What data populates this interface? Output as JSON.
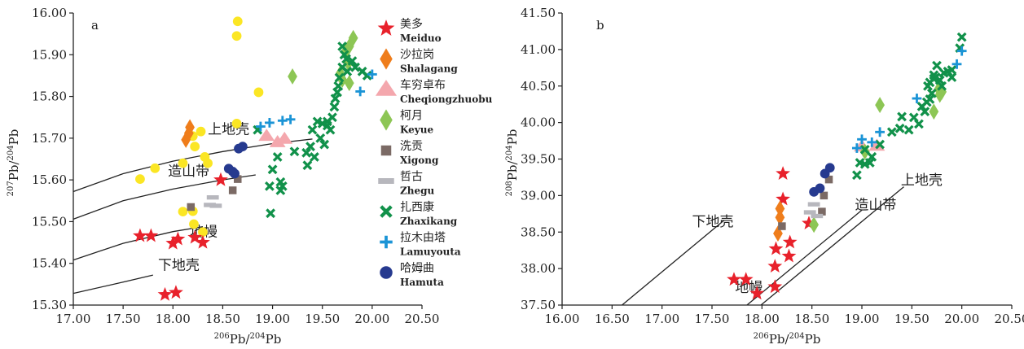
{
  "legend": {
    "items": [
      {
        "key": "meiduo",
        "cn": "美多",
        "en": "Meiduo",
        "symbol": "star",
        "color": "#e8212b"
      },
      {
        "key": "shalagang",
        "cn": "沙拉岗",
        "en": "Shalagang",
        "symbol": "diamond",
        "color": "#ef7d1b"
      },
      {
        "key": "cheqiong",
        "cn": "车穷卓布",
        "en": "Cheqiongzhuobu",
        "symbol": "triangle",
        "color": "#f4a7ad"
      },
      {
        "key": "keyue",
        "cn": "柯月",
        "en": "Keyue",
        "symbol": "diamond",
        "color": "#8dc655"
      },
      {
        "key": "xigong",
        "cn": "洗贡",
        "en": "Xigong",
        "symbol": "square",
        "color": "#7b6a65"
      },
      {
        "key": "zhegu",
        "cn": "哲古",
        "en": "Zhegu",
        "symbol": "dash",
        "color": "#b7b7bd"
      },
      {
        "key": "zhaxikang",
        "cn": "扎西康",
        "en": "Zhaxikang",
        "symbol": "x",
        "color": "#11914a"
      },
      {
        "key": "lamuyouta",
        "cn": "拉木由塔",
        "en": "Lamuyouta",
        "symbol": "plus",
        "color": "#1b94d6"
      },
      {
        "key": "hamuta",
        "cn": "哈姆曲",
        "en": "Hamuta",
        "symbol": "circle",
        "color": "#263a8f"
      },
      {
        "key": "unlabeled",
        "symbol": "circle",
        "color": "#fbe624"
      }
    ]
  },
  "chart_data": [
    {
      "id": "a",
      "panel_label": "a",
      "type": "scatter",
      "xlabel": "206Pb/204Pb",
      "ylabel": "207Pb/204Pb",
      "xlim": [
        17.0,
        20.5
      ],
      "ylim": [
        15.3,
        16.0
      ],
      "xticks": [
        "17.00",
        "17.50",
        "18.00",
        "18.50",
        "19.00",
        "19.50",
        "20.00",
        "20.50"
      ],
      "yticks": [
        "15.30",
        "15.40",
        "15.50",
        "15.60",
        "15.70",
        "15.80",
        "15.90",
        "16.00"
      ],
      "curves": [
        {
          "name": "上地壳",
          "points": [
            [
              17.0,
              15.572
            ],
            [
              17.5,
              15.615
            ],
            [
              18.0,
              15.645
            ],
            [
              18.5,
              15.668
            ],
            [
              19.0,
              15.687
            ],
            [
              19.4,
              15.698
            ]
          ]
        },
        {
          "name": "造山带",
          "points": [
            [
              17.0,
              15.506
            ],
            [
              17.5,
              15.55
            ],
            [
              18.0,
              15.578
            ],
            [
              18.5,
              15.6
            ],
            [
              18.83,
              15.612
            ]
          ]
        },
        {
          "name": "地幔",
          "points": [
            [
              17.0,
              15.408
            ],
            [
              17.5,
              15.448
            ],
            [
              18.0,
              15.476
            ],
            [
              18.3,
              15.488
            ]
          ]
        },
        {
          "name": "下地壳",
          "points": [
            [
              17.0,
              15.328
            ],
            [
              17.5,
              15.355
            ],
            [
              17.8,
              15.372
            ]
          ]
        }
      ],
      "region_labels": [
        {
          "text": "上地壳",
          "x": 18.35,
          "y": 15.71
        },
        {
          "text": "造山带",
          "x": 17.95,
          "y": 15.61
        },
        {
          "text": "地幔",
          "x": 18.17,
          "y": 15.465
        },
        {
          "text": "下地壳",
          "x": 17.85,
          "y": 15.385
        }
      ],
      "series": [
        {
          "key": "unlabeled",
          "points": [
            [
              18.65,
              15.98
            ],
            [
              18.64,
              15.945
            ],
            [
              18.86,
              15.81
            ],
            [
              18.64,
              15.735
            ],
            [
              18.28,
              15.716
            ],
            [
              18.2,
              15.705
            ],
            [
              18.22,
              15.68
            ],
            [
              18.32,
              15.655
            ],
            [
              18.35,
              15.64
            ],
            [
              18.1,
              15.64
            ],
            [
              17.82,
              15.628
            ],
            [
              17.67,
              15.602
            ],
            [
              18.1,
              15.524
            ],
            [
              18.2,
              15.525
            ],
            [
              18.21,
              15.494
            ],
            [
              18.3,
              15.475
            ]
          ]
        },
        {
          "key": "meiduo",
          "points": [
            [
              17.67,
              15.466
            ],
            [
              17.78,
              15.466
            ],
            [
              18.0,
              15.448
            ],
            [
              18.05,
              15.458
            ],
            [
              18.3,
              15.45
            ],
            [
              18.22,
              15.462
            ],
            [
              18.48,
              15.6
            ],
            [
              17.92,
              15.325
            ],
            [
              18.03,
              15.33
            ]
          ]
        },
        {
          "key": "shalagang",
          "points": [
            [
              18.17,
              15.726
            ],
            [
              18.16,
              15.712
            ],
            [
              18.13,
              15.696
            ]
          ]
        },
        {
          "key": "cheqiong",
          "points": [
            [
              18.94,
              15.705
            ],
            [
              19.05,
              15.69
            ],
            [
              19.12,
              15.698
            ]
          ]
        },
        {
          "key": "keyue",
          "points": [
            [
              19.2,
              15.848
            ],
            [
              19.81,
              15.94
            ],
            [
              19.77,
              15.92
            ],
            [
              19.74,
              15.91
            ],
            [
              19.76,
              15.88
            ],
            [
              19.7,
              15.84
            ],
            [
              19.77,
              15.832
            ],
            [
              19.68,
              15.855
            ]
          ]
        },
        {
          "key": "xigong",
          "points": [
            [
              18.18,
              15.535
            ],
            [
              18.6,
              15.575
            ],
            [
              18.65,
              15.602
            ]
          ]
        },
        {
          "key": "zhegu",
          "points": [
            [
              18.4,
              15.558
            ],
            [
              18.37,
              15.54
            ],
            [
              18.43,
              15.538
            ]
          ]
        },
        {
          "key": "zhaxikang",
          "points": [
            [
              19.7,
              15.92
            ],
            [
              19.72,
              15.9
            ],
            [
              19.74,
              15.89
            ],
            [
              19.7,
              15.87
            ],
            [
              19.75,
              15.86
            ],
            [
              19.67,
              15.845
            ],
            [
              19.66,
              15.825
            ],
            [
              19.65,
              15.81
            ],
            [
              19.63,
              15.795
            ],
            [
              19.62,
              15.775
            ],
            [
              19.8,
              15.885
            ],
            [
              19.83,
              15.87
            ],
            [
              19.9,
              15.86
            ],
            [
              19.95,
              15.85
            ],
            [
              19.6,
              15.75
            ],
            [
              19.55,
              15.74
            ],
            [
              19.5,
              15.735
            ],
            [
              19.45,
              15.74
            ],
            [
              19.55,
              15.73
            ],
            [
              19.58,
              15.72
            ],
            [
              19.4,
              15.72
            ],
            [
              19.48,
              15.7
            ],
            [
              19.38,
              15.68
            ],
            [
              19.52,
              15.685
            ],
            [
              19.34,
              15.665
            ],
            [
              19.42,
              15.655
            ],
            [
              19.35,
              15.635
            ],
            [
              19.22,
              15.668
            ],
            [
              19.05,
              15.655
            ],
            [
              18.85,
              15.72
            ],
            [
              19.0,
              15.625
            ],
            [
              19.08,
              15.595
            ],
            [
              19.1,
              15.585
            ],
            [
              18.97,
              15.585
            ],
            [
              18.98,
              15.52
            ],
            [
              19.08,
              15.575
            ]
          ]
        },
        {
          "key": "lamuyouta",
          "points": [
            [
              18.88,
              15.728
            ],
            [
              18.97,
              15.737
            ],
            [
              19.1,
              15.742
            ],
            [
              19.18,
              15.745
            ],
            [
              19.88,
              15.812
            ],
            [
              20.0,
              15.853
            ]
          ]
        },
        {
          "key": "hamuta",
          "points": [
            [
              18.56,
              15.627
            ],
            [
              18.6,
              15.62
            ],
            [
              18.62,
              15.615
            ],
            [
              18.66,
              15.675
            ],
            [
              18.7,
              15.68
            ]
          ]
        }
      ]
    },
    {
      "id": "b",
      "panel_label": "b",
      "type": "scatter",
      "xlabel": "206Pb/204Pb",
      "ylabel": "208Pb/204Pb",
      "xlim": [
        16.0,
        20.5
      ],
      "ylim": [
        37.5,
        41.5
      ],
      "xticks": [
        "16.00",
        "16.50",
        "17.00",
        "17.50",
        "18.00",
        "18.50",
        "19.00",
        "19.50",
        "20.00",
        "20.50"
      ],
      "yticks": [
        "37.50",
        "38.00",
        "38.50",
        "39.00",
        "39.50",
        "40.00",
        "40.50",
        "41.00",
        "41.50"
      ],
      "curves": [
        {
          "name": "下地壳",
          "points": [
            [
              16.6,
              37.5
            ],
            [
              17.62,
              38.66
            ]
          ]
        },
        {
          "name": "造山带",
          "points": [
            [
              17.85,
              37.5
            ],
            [
              19.0,
              38.8
            ]
          ]
        },
        {
          "name": "上地壳",
          "points": [
            [
              17.99,
              37.5
            ],
            [
              19.42,
              39.12
            ]
          ]
        }
      ],
      "region_labels": [
        {
          "text": "下地壳",
          "x": 17.3,
          "y": 38.58
        },
        {
          "text": "造山带",
          "x": 18.93,
          "y": 38.81
        },
        {
          "text": "上地壳",
          "x": 19.39,
          "y": 39.15
        },
        {
          "text": "地幔",
          "x": 17.73,
          "y": 37.68
        }
      ],
      "series": [
        {
          "key": "meiduo",
          "points": [
            [
              17.72,
              37.85
            ],
            [
              17.84,
              37.85
            ],
            [
              17.95,
              37.66
            ],
            [
              18.13,
              37.75
            ],
            [
              18.13,
              38.03
            ],
            [
              18.14,
              38.27
            ],
            [
              18.28,
              38.36
            ],
            [
              18.27,
              38.17
            ],
            [
              18.47,
              38.62
            ],
            [
              18.21,
              38.95
            ],
            [
              18.21,
              39.3
            ]
          ]
        },
        {
          "key": "shalagang",
          "points": [
            [
              18.18,
              38.82
            ],
            [
              18.18,
              38.7
            ],
            [
              18.16,
              38.48
            ]
          ]
        },
        {
          "key": "cheqiong",
          "points": [
            [
              19.0,
              39.67
            ],
            [
              19.15,
              39.68
            ]
          ]
        },
        {
          "key": "keyue",
          "points": [
            [
              19.18,
              40.24
            ],
            [
              19.72,
              40.15
            ],
            [
              19.78,
              40.38
            ],
            [
              19.8,
              40.42
            ],
            [
              19.77,
              40.46
            ],
            [
              18.52,
              38.6
            ],
            [
              19.03,
              39.6
            ]
          ]
        },
        {
          "key": "xigong",
          "points": [
            [
              18.2,
              38.58
            ],
            [
              18.6,
              38.78
            ],
            [
              18.62,
              39.0
            ],
            [
              18.67,
              39.22
            ]
          ]
        },
        {
          "key": "zhegu",
          "points": [
            [
              18.52,
              38.88
            ],
            [
              18.48,
              38.77
            ],
            [
              18.55,
              38.72
            ]
          ]
        },
        {
          "key": "zhaxikang",
          "points": [
            [
              18.95,
              39.28
            ],
            [
              18.98,
              39.45
            ],
            [
              19.03,
              39.43
            ],
            [
              19.08,
              39.45
            ],
            [
              19.1,
              39.53
            ],
            [
              19.03,
              39.63
            ],
            [
              19.18,
              39.7
            ],
            [
              19.3,
              39.87
            ],
            [
              19.38,
              39.92
            ],
            [
              19.4,
              40.08
            ],
            [
              19.47,
              39.9
            ],
            [
              19.52,
              40.07
            ],
            [
              19.57,
              39.98
            ],
            [
              19.6,
              40.22
            ],
            [
              19.63,
              40.15
            ],
            [
              19.65,
              40.28
            ],
            [
              19.68,
              40.32
            ],
            [
              19.7,
              40.4
            ],
            [
              19.72,
              40.6
            ],
            [
              19.74,
              40.62
            ],
            [
              19.78,
              40.58
            ],
            [
              19.8,
              40.5
            ],
            [
              19.82,
              40.68
            ],
            [
              19.86,
              40.7
            ],
            [
              19.9,
              40.62
            ],
            [
              19.66,
              40.5
            ],
            [
              19.68,
              40.55
            ],
            [
              19.72,
              40.65
            ],
            [
              19.75,
              40.78
            ],
            [
              19.9,
              40.72
            ],
            [
              19.98,
              41.02
            ],
            [
              20.0,
              41.17
            ]
          ]
        },
        {
          "key": "lamuyouta",
          "points": [
            [
              18.95,
              39.65
            ],
            [
              19.0,
              39.77
            ],
            [
              19.1,
              39.73
            ],
            [
              19.18,
              39.87
            ],
            [
              19.55,
              40.33
            ],
            [
              19.95,
              40.8
            ],
            [
              20.0,
              40.98
            ]
          ]
        },
        {
          "key": "hamuta",
          "points": [
            [
              18.52,
              39.05
            ],
            [
              18.58,
              39.1
            ],
            [
              18.63,
              39.3
            ],
            [
              18.68,
              39.38
            ]
          ]
        }
      ]
    }
  ]
}
